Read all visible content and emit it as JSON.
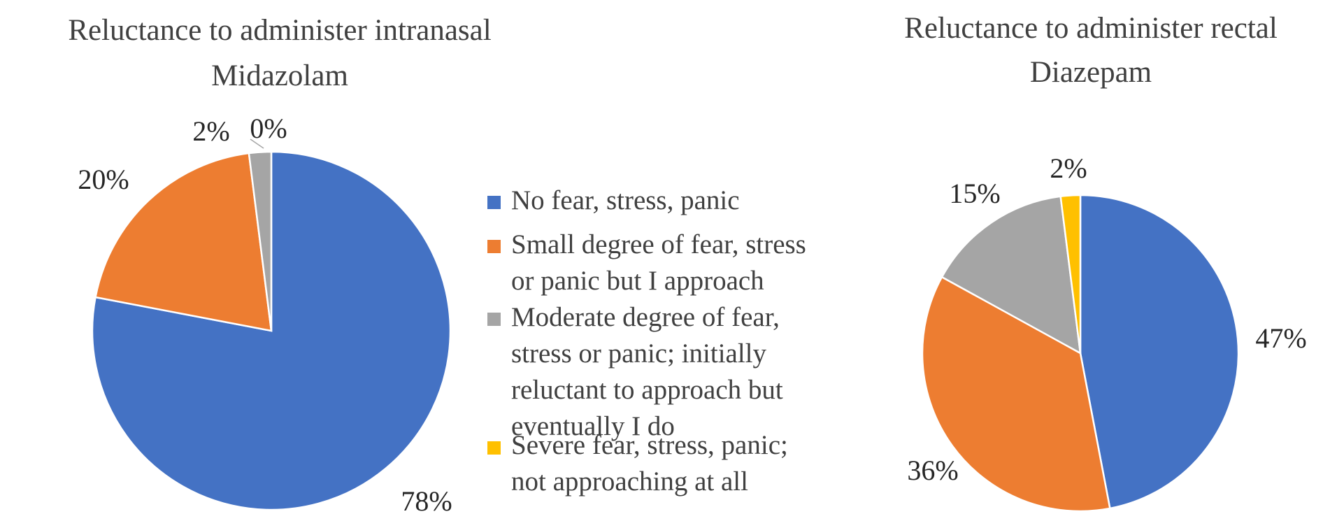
{
  "chart_data": [
    {
      "type": "pie",
      "title": "Reluctance to administer intranasal Midazolam",
      "title_lines": [
        "Reluctance to administer intranasal",
        "Midazolam"
      ],
      "categories": [
        "No fear, stress, panic",
        "Small degree of fear, stress or panic but I approach",
        "Moderate degree of fear, stress or panic; initially reluctant to approach but eventually I do",
        "Severe fear, stress, panic; not approaching at all"
      ],
      "values": [
        78,
        20,
        2,
        0
      ],
      "data_labels": [
        "78%",
        "20%",
        "2%",
        "0%"
      ],
      "colors": [
        "#4472C4",
        "#ED7D31",
        "#A5A5A5",
        "#FFC000"
      ]
    },
    {
      "type": "pie",
      "title": "Reluctance to administer rectal Diazepam",
      "title_lines": [
        "Reluctance to administer rectal",
        "Diazepam"
      ],
      "categories": [
        "No fear, stress, panic",
        "Small degree of fear, stress or panic but I approach",
        "Moderate degree of fear, stress or panic; initially reluctant to approach but eventually I do",
        "Severe fear, stress, panic; not approaching at all"
      ],
      "values": [
        47,
        36,
        15,
        2
      ],
      "data_labels": [
        "47%",
        "36%",
        "15%",
        "2%"
      ],
      "colors": [
        "#4472C4",
        "#ED7D31",
        "#A5A5A5",
        "#FFC000"
      ]
    }
  ],
  "legend": {
    "placement": "center",
    "items": [
      {
        "lines": [
          "No fear, stress, panic"
        ],
        "color": "#4472C4"
      },
      {
        "lines": [
          "Small degree of fear, stress",
          "or panic but I approach"
        ],
        "color": "#ED7D31"
      },
      {
        "lines": [
          "Moderate degree of fear,",
          "stress or panic; initially",
          "reluctant to approach but",
          "eventually I do"
        ],
        "color": "#A5A5A5"
      },
      {
        "lines": [
          "Severe fear, stress, panic;",
          "not approaching at all"
        ],
        "color": "#FFC000"
      }
    ]
  }
}
